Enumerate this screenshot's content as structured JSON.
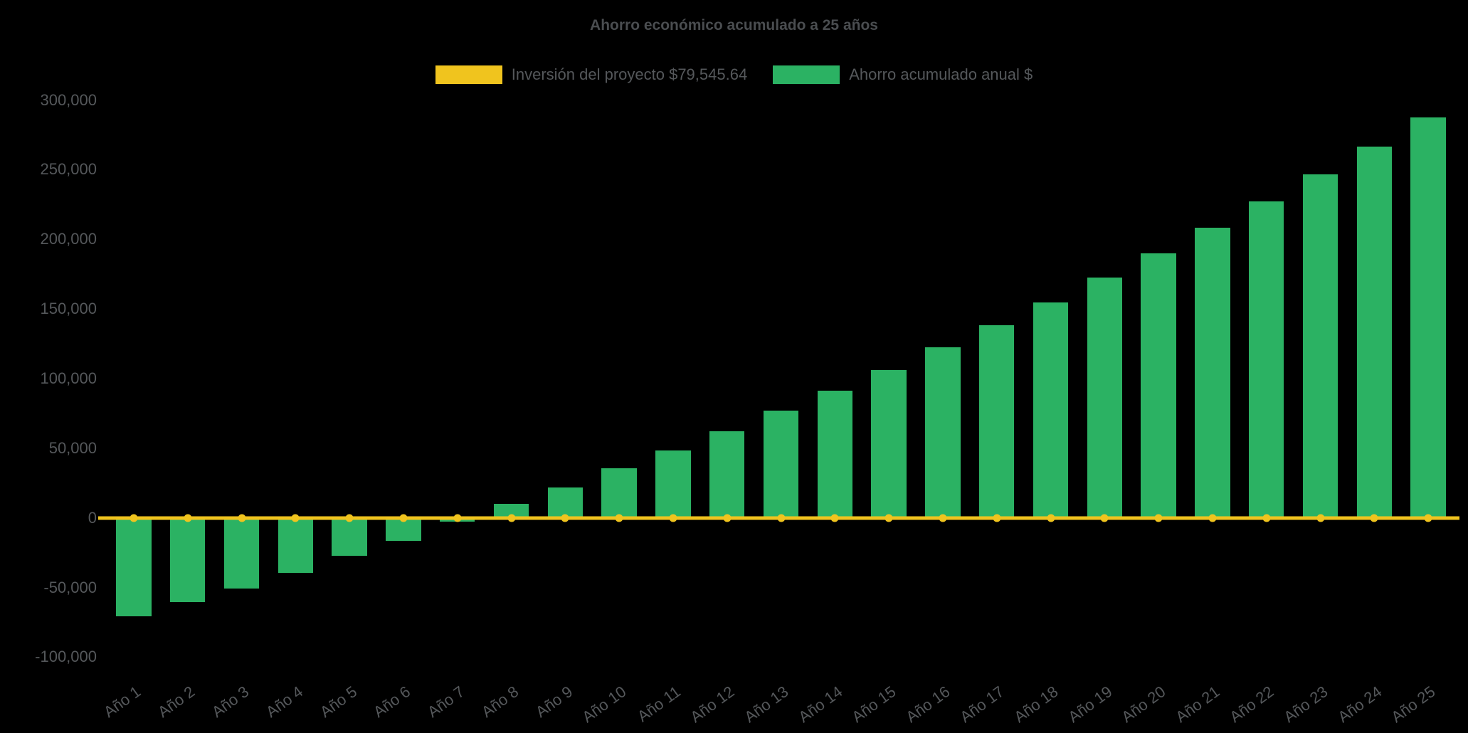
{
  "colors": {
    "background": "#000000",
    "bar_green": "#2bb263",
    "line_yellow": "#f0c41e",
    "text_gray": "#55585b",
    "title_gray": "#4a4d50"
  },
  "chart_data": {
    "type": "bar",
    "title": "Ahorro económico acumulado a 25 años",
    "categories": [
      "Año 1",
      "Año 2",
      "Año 3",
      "Año 4",
      "Año 5",
      "Año 6",
      "Año 7",
      "Año 8",
      "Año 9",
      "Año 10",
      "Año 11",
      "Año 12",
      "Año 13",
      "Año 14",
      "Año 15",
      "Año 16",
      "Año 17",
      "Año 18",
      "Año 19",
      "Año 20",
      "Año 21",
      "Año 22",
      "Año 23",
      "Año 24",
      "Año 25"
    ],
    "series": [
      {
        "name": "Inversión del proyecto $79,545.64",
        "type": "line",
        "color": "#f0c41e",
        "line_y": 0,
        "marker": "circle"
      },
      {
        "name": "Ahorro acumulado anual $",
        "type": "bar",
        "color": "#2bb263",
        "values": [
          -70500,
          -60500,
          -50500,
          -39500,
          -27000,
          -16500,
          -2500,
          10000,
          22000,
          35500,
          48500,
          62000,
          77000,
          91500,
          106000,
          122500,
          138500,
          154500,
          172500,
          190000,
          208500,
          227000,
          246500,
          266500,
          287500
        ]
      }
    ],
    "ylim": [
      -111000,
      310000
    ],
    "yticks": [
      {
        "value": 300000,
        "label": "300,000"
      },
      {
        "value": 250000,
        "label": "250,000"
      },
      {
        "value": 200000,
        "label": "200,000"
      },
      {
        "value": 150000,
        "label": "150,000"
      },
      {
        "value": 100000,
        "label": "100,000"
      },
      {
        "value": 50000,
        "label": "50,000"
      },
      {
        "value": 0,
        "label": "0"
      },
      {
        "value": -50000,
        "label": "-50,000"
      },
      {
        "value": -100000,
        "label": "-100,000"
      }
    ],
    "bar_width_pct": 2.6,
    "legend_position": "top",
    "grid": false,
    "xlabel": "",
    "ylabel": ""
  }
}
